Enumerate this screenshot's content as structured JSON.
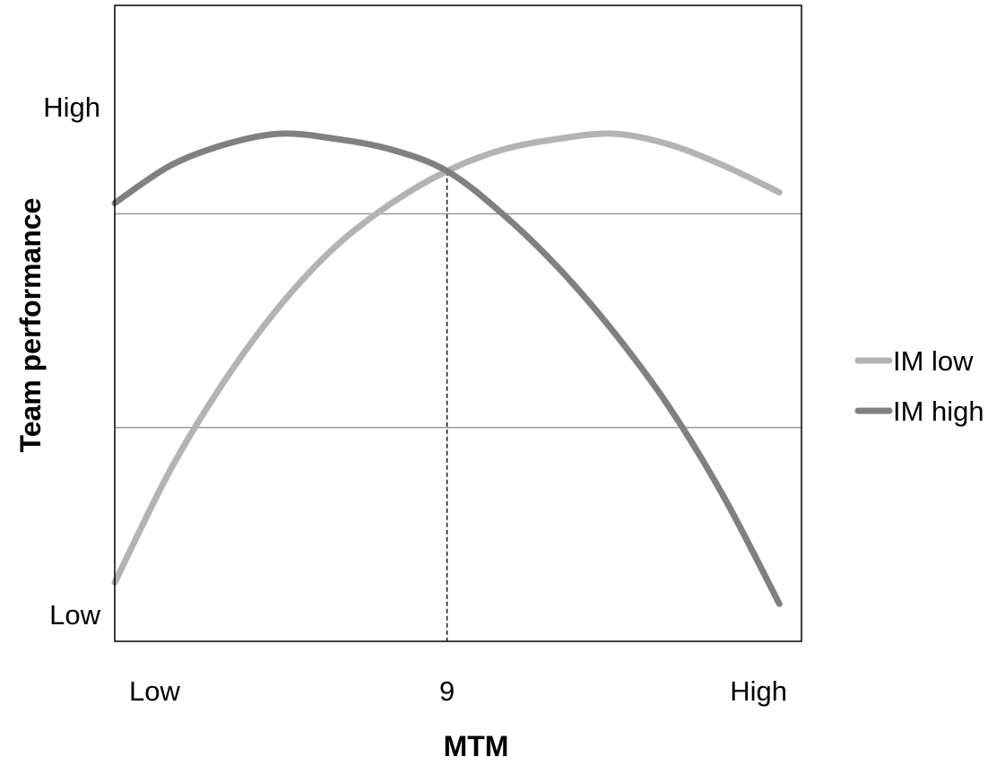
{
  "chart_data": {
    "type": "line",
    "title": "",
    "xlabel": "MTM",
    "ylabel": "Team performance",
    "x_tick_labels": [
      {
        "x": 0,
        "label": "Low"
      },
      {
        "x": 9,
        "label": "9"
      },
      {
        "x": 18.6,
        "label": "High"
      }
    ],
    "y_tick_labels": [
      {
        "y": 0.05,
        "label": "Low"
      },
      {
        "y": 1.0,
        "label": "High"
      }
    ],
    "xlim": [
      0,
      18.6
    ],
    "ylim": [
      0,
      1.19
    ],
    "grid": {
      "horizontal": [
        0.4,
        0.8
      ],
      "vertical": false
    },
    "reference_line": {
      "x": 9,
      "style": "dashed"
    },
    "legend_position": "right",
    "series": [
      {
        "name": "IM low",
        "color": "#b3b3b3",
        "x": [
          0,
          1.5,
          3,
          4.5,
          6,
          7.5,
          9,
          10.5,
          12,
          13.5,
          15,
          16.5,
          18
        ],
        "y": [
          0.11,
          0.32,
          0.49,
          0.63,
          0.74,
          0.82,
          0.88,
          0.92,
          0.94,
          0.95,
          0.93,
          0.89,
          0.84
        ]
      },
      {
        "name": "IM high",
        "color": "#808080",
        "x": [
          0,
          1.5,
          3,
          4.5,
          6,
          7.5,
          9,
          10.5,
          12,
          13.5,
          15,
          16.5,
          18
        ],
        "y": [
          0.82,
          0.89,
          0.93,
          0.95,
          0.94,
          0.92,
          0.88,
          0.8,
          0.7,
          0.58,
          0.44,
          0.27,
          0.07
        ]
      }
    ]
  }
}
